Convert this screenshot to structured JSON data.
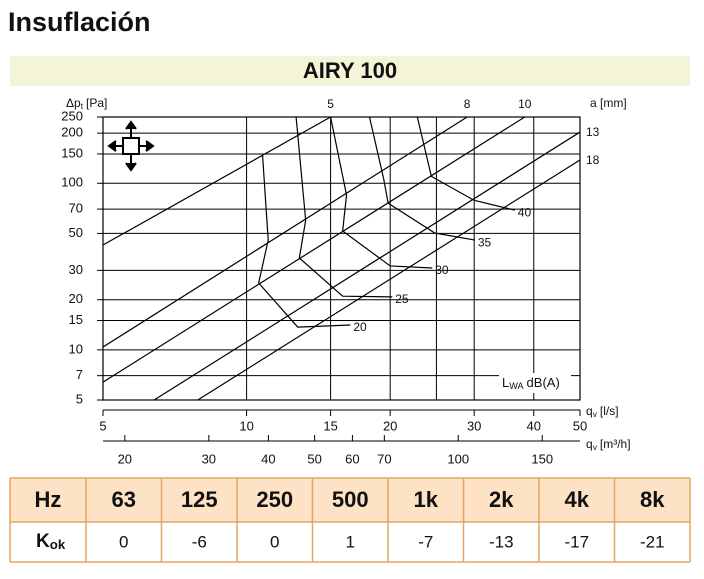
{
  "header": {
    "title": "Insuflación",
    "banner": "AIRY 100"
  },
  "chart_data": {
    "type": "line",
    "xlog": true,
    "ylog": true,
    "y_label": {
      "main": "Δp",
      "sub": "t",
      "unit": "[Pa]"
    },
    "x_label": {
      "main": "q",
      "sub": "v",
      "unit": "[l/s]"
    },
    "x2_label": {
      "main": "q",
      "sub": "v",
      "unit": "[m³/h]"
    },
    "series_label": "a [mm]",
    "contour_label": {
      "main": "L",
      "sub": "WA",
      "unit": "dB(A)"
    },
    "xlim": [
      5,
      50
    ],
    "xticks": [
      5,
      10,
      15,
      20,
      30,
      40,
      50
    ],
    "xgrid": [
      10,
      15,
      20,
      25,
      30,
      40
    ],
    "x2lim": [
      18,
      180
    ],
    "x2ticks": [
      20,
      30,
      40,
      50,
      60,
      70,
      100,
      150
    ],
    "ylim": [
      5,
      250
    ],
    "yticks": [
      5,
      7,
      10,
      15,
      20,
      30,
      50,
      70,
      100,
      150,
      200,
      250
    ],
    "series": [
      {
        "name": "5",
        "x": [
          5,
          15
        ],
        "values": [
          42.6,
          250
        ]
      },
      {
        "name": "8",
        "x": [
          5,
          29
        ],
        "values": [
          10.4,
          250
        ]
      },
      {
        "name": "10",
        "x": [
          5,
          38.3
        ],
        "values": [
          6.4,
          250
        ]
      },
      {
        "name": "13",
        "x": [
          6.4,
          50
        ],
        "values": [
          5,
          203
        ]
      },
      {
        "name": "18",
        "x": [
          7.9,
          50
        ],
        "values": [
          5,
          138
        ]
      }
    ],
    "contours": [
      {
        "name": "20",
        "x": [
          10.8,
          11.1,
          10.6,
          12.8,
          16.5
        ],
        "values": [
          148,
          45.6,
          25.2,
          13.7,
          14.1
        ]
      },
      {
        "name": "25",
        "x": [
          12.7,
          13.3,
          12.9,
          15.9,
          20.2
        ],
        "values": [
          250,
          60,
          35.6,
          21,
          20.8
        ]
      },
      {
        "name": "30",
        "x": [
          15,
          16.2,
          15.9,
          20,
          24.5
        ],
        "values": [
          250,
          85,
          51.7,
          31.9,
          31
        ]
      },
      {
        "name": "35",
        "x": [
          18.1,
          19.4,
          19.8,
          24.8,
          30.1
        ],
        "values": [
          250,
          105,
          76,
          50.3,
          45.6
        ]
      },
      {
        "name": "40",
        "x": [
          22.8,
          24.4,
          30,
          36.5
        ],
        "values": [
          250,
          110,
          79,
          69
        ]
      }
    ]
  },
  "table": {
    "header": [
      "Hz",
      "63",
      "125",
      "250",
      "500",
      "1k",
      "2k",
      "4k",
      "8k"
    ],
    "row_label": {
      "main": "K",
      "sub": "ok"
    },
    "row": [
      0,
      -6,
      0,
      1,
      -7,
      -13,
      -17,
      -21
    ]
  }
}
